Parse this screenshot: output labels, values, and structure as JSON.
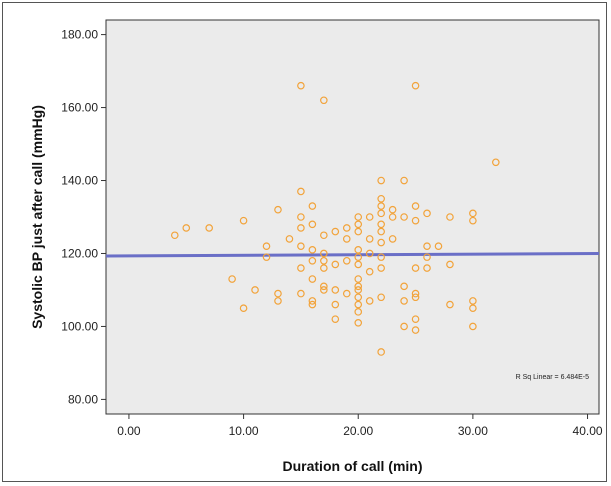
{
  "chart_data": {
    "type": "scatter",
    "title": "",
    "xlabel": "Duration of call (min)",
    "ylabel": "Systolic BP just after call (mmHg)",
    "xlim": [
      -2,
      41
    ],
    "ylim": [
      76,
      184
    ],
    "xticks": [
      "0.00",
      "10.00",
      "20.00",
      "30.00",
      "40.00"
    ],
    "xtick_values": [
      0,
      10,
      20,
      30,
      40
    ],
    "yticks": [
      "80.00",
      "100.00",
      "120.00",
      "140.00",
      "160.00",
      "180.00"
    ],
    "ytick_values": [
      80,
      100,
      120,
      140,
      160,
      180
    ],
    "grid": false,
    "legend": "none",
    "plot_background": "#ebebeb",
    "marker_color": "#f2a33a",
    "line_color": "#6a6fc7",
    "fit_line": {
      "x": [
        -2,
        41
      ],
      "y": [
        119.3,
        120.0
      ]
    },
    "annotation": "R Sq Linear = 6.484E-5",
    "points": [
      {
        "x": 4,
        "y": 125
      },
      {
        "x": 5,
        "y": 127
      },
      {
        "x": 7,
        "y": 127
      },
      {
        "x": 9,
        "y": 113
      },
      {
        "x": 10,
        "y": 129
      },
      {
        "x": 10,
        "y": 105
      },
      {
        "x": 11,
        "y": 110
      },
      {
        "x": 12,
        "y": 122
      },
      {
        "x": 12,
        "y": 119
      },
      {
        "x": 13,
        "y": 132
      },
      {
        "x": 13,
        "y": 109
      },
      {
        "x": 13,
        "y": 107
      },
      {
        "x": 14,
        "y": 124
      },
      {
        "x": 15,
        "y": 166
      },
      {
        "x": 15,
        "y": 137
      },
      {
        "x": 15,
        "y": 130
      },
      {
        "x": 15,
        "y": 127
      },
      {
        "x": 15,
        "y": 122
      },
      {
        "x": 15,
        "y": 116
      },
      {
        "x": 15,
        "y": 109
      },
      {
        "x": 16,
        "y": 133
      },
      {
        "x": 16,
        "y": 128
      },
      {
        "x": 16,
        "y": 121
      },
      {
        "x": 16,
        "y": 118
      },
      {
        "x": 16,
        "y": 113
      },
      {
        "x": 16,
        "y": 107
      },
      {
        "x": 16,
        "y": 106
      },
      {
        "x": 17,
        "y": 162
      },
      {
        "x": 17,
        "y": 125
      },
      {
        "x": 17,
        "y": 120
      },
      {
        "x": 17,
        "y": 118
      },
      {
        "x": 17,
        "y": 116
      },
      {
        "x": 17,
        "y": 111
      },
      {
        "x": 17,
        "y": 110
      },
      {
        "x": 18,
        "y": 126
      },
      {
        "x": 18,
        "y": 117
      },
      {
        "x": 18,
        "y": 110
      },
      {
        "x": 18,
        "y": 106
      },
      {
        "x": 18,
        "y": 102
      },
      {
        "x": 19,
        "y": 127
      },
      {
        "x": 19,
        "y": 124
      },
      {
        "x": 19,
        "y": 118
      },
      {
        "x": 19,
        "y": 109
      },
      {
        "x": 20,
        "y": 130
      },
      {
        "x": 20,
        "y": 128
      },
      {
        "x": 20,
        "y": 126
      },
      {
        "x": 20,
        "y": 121
      },
      {
        "x": 20,
        "y": 119
      },
      {
        "x": 20,
        "y": 117
      },
      {
        "x": 20,
        "y": 113
      },
      {
        "x": 20,
        "y": 111
      },
      {
        "x": 20,
        "y": 110
      },
      {
        "x": 20,
        "y": 108
      },
      {
        "x": 20,
        "y": 106
      },
      {
        "x": 20,
        "y": 104
      },
      {
        "x": 20,
        "y": 101
      },
      {
        "x": 21,
        "y": 130
      },
      {
        "x": 21,
        "y": 124
      },
      {
        "x": 21,
        "y": 120
      },
      {
        "x": 21,
        "y": 115
      },
      {
        "x": 21,
        "y": 107
      },
      {
        "x": 22,
        "y": 140
      },
      {
        "x": 22,
        "y": 135
      },
      {
        "x": 22,
        "y": 133
      },
      {
        "x": 22,
        "y": 131
      },
      {
        "x": 22,
        "y": 128
      },
      {
        "x": 22,
        "y": 126
      },
      {
        "x": 22,
        "y": 123
      },
      {
        "x": 22,
        "y": 119
      },
      {
        "x": 22,
        "y": 116
      },
      {
        "x": 22,
        "y": 108
      },
      {
        "x": 22,
        "y": 93
      },
      {
        "x": 23,
        "y": 132
      },
      {
        "x": 23,
        "y": 130
      },
      {
        "x": 23,
        "y": 124
      },
      {
        "x": 24,
        "y": 140
      },
      {
        "x": 24,
        "y": 130
      },
      {
        "x": 24,
        "y": 111
      },
      {
        "x": 24,
        "y": 107
      },
      {
        "x": 24,
        "y": 100
      },
      {
        "x": 25,
        "y": 166
      },
      {
        "x": 25,
        "y": 133
      },
      {
        "x": 25,
        "y": 129
      },
      {
        "x": 25,
        "y": 116
      },
      {
        "x": 25,
        "y": 109
      },
      {
        "x": 25,
        "y": 108
      },
      {
        "x": 25,
        "y": 102
      },
      {
        "x": 25,
        "y": 99
      },
      {
        "x": 26,
        "y": 131
      },
      {
        "x": 26,
        "y": 122
      },
      {
        "x": 26,
        "y": 119
      },
      {
        "x": 26,
        "y": 116
      },
      {
        "x": 27,
        "y": 122
      },
      {
        "x": 28,
        "y": 130
      },
      {
        "x": 28,
        "y": 117
      },
      {
        "x": 28,
        "y": 106
      },
      {
        "x": 30,
        "y": 131
      },
      {
        "x": 30,
        "y": 129
      },
      {
        "x": 30,
        "y": 107
      },
      {
        "x": 30,
        "y": 105
      },
      {
        "x": 30,
        "y": 100
      },
      {
        "x": 32,
        "y": 145
      }
    ]
  }
}
